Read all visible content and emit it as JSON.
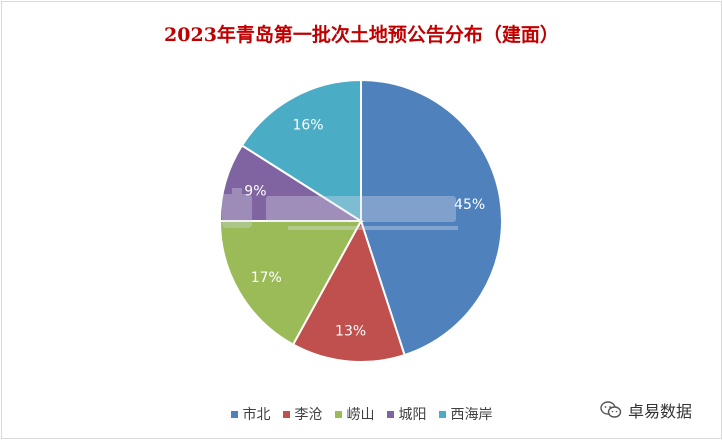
{
  "title": "2023年青岛第一批次土地预公告分布（建面）",
  "watermark": {
    "text": "卓易数据"
  },
  "chart_data": {
    "type": "pie",
    "title": "2023年青岛第一批次土地预公告分布（建面）",
    "categories": [
      "市北",
      "李沧",
      "崂山",
      "城阳",
      "西海岸"
    ],
    "values": [
      45,
      13,
      17,
      9,
      16
    ],
    "labels": [
      "45%",
      "13%",
      "17%",
      "9%",
      "16%"
    ],
    "colors": [
      "#4f81bd",
      "#c0504d",
      "#9bbb59",
      "#8064a2",
      "#4bacc6"
    ],
    "legend_position": "bottom"
  }
}
